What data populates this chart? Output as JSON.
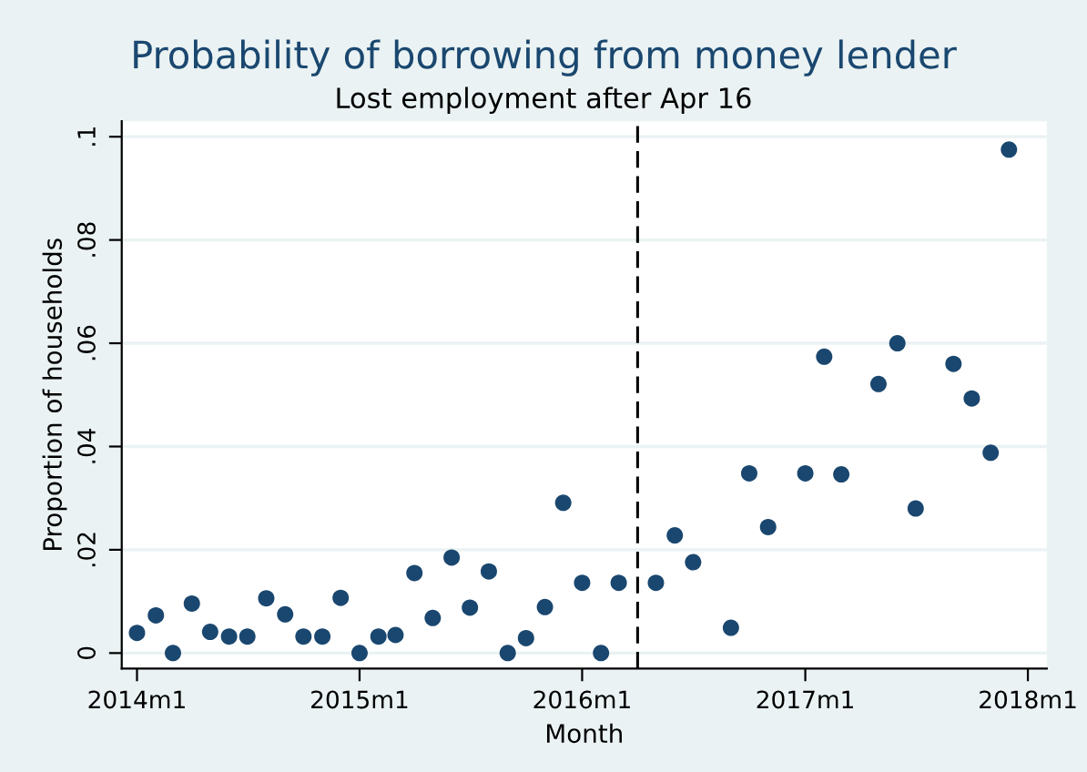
{
  "chart_data": {
    "type": "scatter",
    "title": "Probability of borrowing from money lender",
    "subtitle": "Lost employment after Apr 16",
    "xlabel": "Month",
    "ylabel": "Proportion of households",
    "x": [
      "2014-01",
      "2014-02",
      "2014-03",
      "2014-04",
      "2014-05",
      "2014-06",
      "2014-07",
      "2014-08",
      "2014-09",
      "2014-10",
      "2014-11",
      "2014-12",
      "2015-01",
      "2015-02",
      "2015-03",
      "2015-04",
      "2015-05",
      "2015-06",
      "2015-07",
      "2015-08",
      "2015-09",
      "2015-10",
      "2015-11",
      "2015-12",
      "2016-01",
      "2016-02",
      "2016-03",
      "2016-05",
      "2016-06",
      "2016-07",
      "2016-09",
      "2016-10",
      "2016-11",
      "2017-01",
      "2017-02",
      "2017-03",
      "2017-05",
      "2017-06",
      "2017-07",
      "2017-09",
      "2017-10",
      "2017-11",
      "2017-12"
    ],
    "series": [
      {
        "color": "#1a476f",
        "values": [
          0.0039,
          0.0073,
          0,
          0.0096,
          0.0041,
          0.0032,
          0.0032,
          0.0106,
          0.0075,
          0.0032,
          0.0032,
          0.0107,
          0,
          0.0032,
          0.0035,
          0.0155,
          0.0068,
          0.0185,
          0.0088,
          0.0158,
          0,
          0.0029,
          0.0089,
          0.0291,
          0.0136,
          0,
          0.0136,
          0.0136,
          0.0228,
          0.0176,
          0.0049,
          0.0348,
          0.0244,
          0.0348,
          0.0574,
          0.0346,
          0.0521,
          0.06,
          0.028,
          0.056,
          0.0493,
          0.0388,
          0.0975
        ]
      }
    ],
    "marker": "circle",
    "xlim": [
      "2013-12-07",
      "2018-02-01"
    ],
    "xticks": [
      {
        "value": "2014-01",
        "label": "2014m1"
      },
      {
        "value": "2015-01",
        "label": "2015m1"
      },
      {
        "value": "2016-01",
        "label": "2016m1"
      },
      {
        "value": "2017-01",
        "label": "2017m1"
      },
      {
        "value": "2018-01",
        "label": "2018m1"
      }
    ],
    "ylim": [
      -0.003,
      0.103
    ],
    "yticks": [
      0,
      {
        "value": 0.02,
        "label": ".02"
      },
      {
        "value": 0.04,
        "label": ".04"
      },
      {
        "value": 0.06,
        "label": ".06"
      },
      {
        "value": 0.08,
        "label": ".08"
      },
      {
        "value": 0.1,
        "label": ".1"
      }
    ],
    "grid": "y",
    "ref_lines": [
      {
        "axis": "x",
        "value": "2016-04",
        "color": "#000000",
        "line_style": "dashed"
      }
    ]
  }
}
